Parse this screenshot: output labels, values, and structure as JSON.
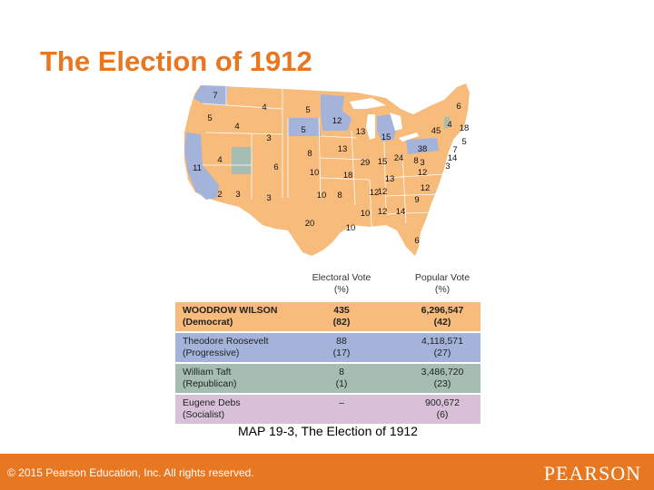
{
  "title": "The Election of 1912",
  "colors": {
    "wilson": "#f7bb7c",
    "roosevelt": "#a3b3d9",
    "taft": "#a6bdb2",
    "debs": "#d8c1d8",
    "accent": "#e87722",
    "water": "#ffffff"
  },
  "map": {
    "state_votes": [
      "7",
      "4",
      "5",
      "12",
      "5",
      "4",
      "3",
      "5",
      "13",
      "15",
      "45",
      "38",
      "6",
      "4",
      "18",
      "5",
      "7",
      "14",
      "3",
      "3",
      "11",
      "4",
      "6",
      "13",
      "8",
      "29",
      "15",
      "24",
      "8",
      "10",
      "18",
      "12",
      "12",
      "2",
      "3",
      "3",
      "10",
      "13",
      "12",
      "9",
      "10",
      "12",
      "14",
      "20",
      "10",
      "6",
      "8",
      "12"
    ]
  },
  "table": {
    "headers": {
      "electoral_line1": "Electoral Vote",
      "electoral_line2": "(%)",
      "popular_line1": "Popular Vote",
      "popular_line2": "(%)"
    },
    "rows": [
      {
        "name": "WOODROW WILSON",
        "party": "(Democrat)",
        "electoral": "435",
        "electoral_pct": "(82)",
        "popular": "6,296,547",
        "popular_pct": "(42)"
      },
      {
        "name": "Theodore Roosevelt",
        "party": "(Progressive)",
        "electoral": "88",
        "electoral_pct": "(17)",
        "popular": "4,118,571",
        "popular_pct": "(27)"
      },
      {
        "name": "William Taft",
        "party": "(Republican)",
        "electoral": "8",
        "electoral_pct": "(1)",
        "popular": "3,486,720",
        "popular_pct": "(23)"
      },
      {
        "name": "Eugene Debs",
        "party": "(Socialist)",
        "electoral": "–",
        "electoral_pct": "",
        "popular": "900,672",
        "popular_pct": "(6)"
      }
    ]
  },
  "caption": "MAP 19-3, The Election of 1912",
  "footer": {
    "copyright": "© 2015  Pearson Education, Inc. All rights reserved.",
    "logo": "PEARSON"
  }
}
